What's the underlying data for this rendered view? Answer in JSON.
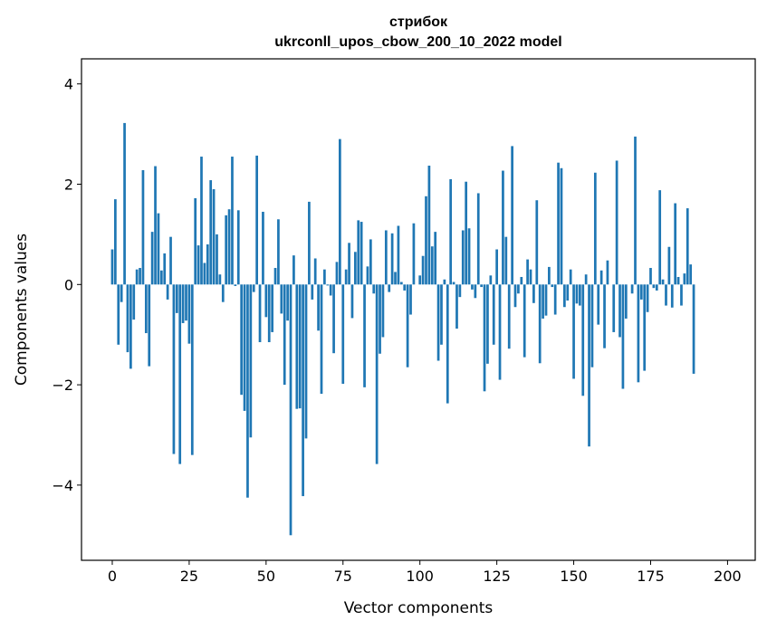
{
  "chart_data": {
    "type": "bar",
    "title_line1": "стрибок",
    "title_line2": "ukrconll_upos_cbow_200_10_2022 model",
    "xlabel": "Vector components",
    "ylabel": "Components values",
    "xlim": [
      -10,
      209
    ],
    "ylim": [
      -5.5,
      4.5
    ],
    "xticks": [
      0,
      25,
      50,
      75,
      100,
      125,
      150,
      175,
      200
    ],
    "xtick_labels": [
      "0",
      "25",
      "50",
      "75",
      "100",
      "125",
      "150",
      "175",
      "200"
    ],
    "yticks": [
      -4,
      -2,
      0,
      2,
      4
    ],
    "ytick_labels": [
      "−4",
      "−2",
      "0",
      "2",
      "4"
    ],
    "grid": false,
    "bar_color": "#1f77b4",
    "values": [
      0.7,
      1.7,
      -1.2,
      -0.35,
      3.22,
      -1.35,
      -1.68,
      -0.7,
      0.3,
      0.33,
      2.28,
      -0.97,
      -1.63,
      1.05,
      2.36,
      1.42,
      0.28,
      0.62,
      -0.3,
      0.95,
      -3.38,
      -0.57,
      -3.58,
      -0.77,
      -0.72,
      -1.18,
      -3.4,
      1.72,
      0.78,
      2.55,
      0.43,
      0.8,
      2.08,
      1.9,
      1.0,
      0.2,
      -0.35,
      1.38,
      1.5,
      2.55,
      -0.03,
      1.48,
      -2.2,
      -2.52,
      -4.25,
      -3.05,
      -0.15,
      2.57,
      -1.15,
      1.45,
      -0.65,
      -1.15,
      -0.95,
      0.33,
      1.3,
      -0.58,
      -2.0,
      -0.72,
      -5.0,
      0.58,
      -2.48,
      -2.47,
      -4.22,
      -3.07,
      1.65,
      -0.3,
      0.52,
      -0.92,
      -2.18,
      0.3,
      -0.02,
      -0.22,
      -1.37,
      0.45,
      2.9,
      -1.98,
      0.3,
      0.83,
      -0.67,
      0.65,
      1.28,
      1.25,
      -2.05,
      0.36,
      0.9,
      -0.18,
      -3.58,
      -1.38,
      -1.05,
      1.08,
      -0.15,
      1.02,
      0.25,
      1.17,
      0.05,
      -0.12,
      -1.65,
      -0.6,
      1.22,
      0.0,
      0.18,
      0.57,
      1.76,
      2.37,
      0.76,
      1.05,
      -1.52,
      -1.2,
      0.1,
      -2.37,
      2.1,
      0.05,
      -0.88,
      -0.25,
      1.08,
      2.05,
      1.12,
      -0.1,
      -0.27,
      1.82,
      -0.05,
      -2.13,
      -1.58,
      0.18,
      -1.2,
      0.7,
      -1.9,
      2.27,
      0.95,
      -1.28,
      2.76,
      -0.45,
      -0.18,
      0.15,
      -1.45,
      0.5,
      0.3,
      -0.37,
      1.68,
      -1.57,
      -0.68,
      -0.62,
      0.35,
      -0.05,
      -0.6,
      2.43,
      2.32,
      -0.45,
      -0.32,
      0.3,
      -1.88,
      -0.38,
      -0.42,
      -2.22,
      0.2,
      -3.23,
      -1.65,
      2.23,
      -0.8,
      0.28,
      -1.27,
      0.48,
      0.0,
      -0.95,
      2.47,
      -1.05,
      -2.08,
      -0.68,
      0.0,
      -0.18,
      2.95,
      -1.95,
      -0.3,
      -1.72,
      -0.55,
      0.33,
      -0.07,
      -0.12,
      1.88,
      0.1,
      -0.42,
      0.75,
      -0.46,
      1.62,
      0.15,
      -0.42,
      0.22,
      1.52,
      0.4,
      -1.78
    ]
  }
}
